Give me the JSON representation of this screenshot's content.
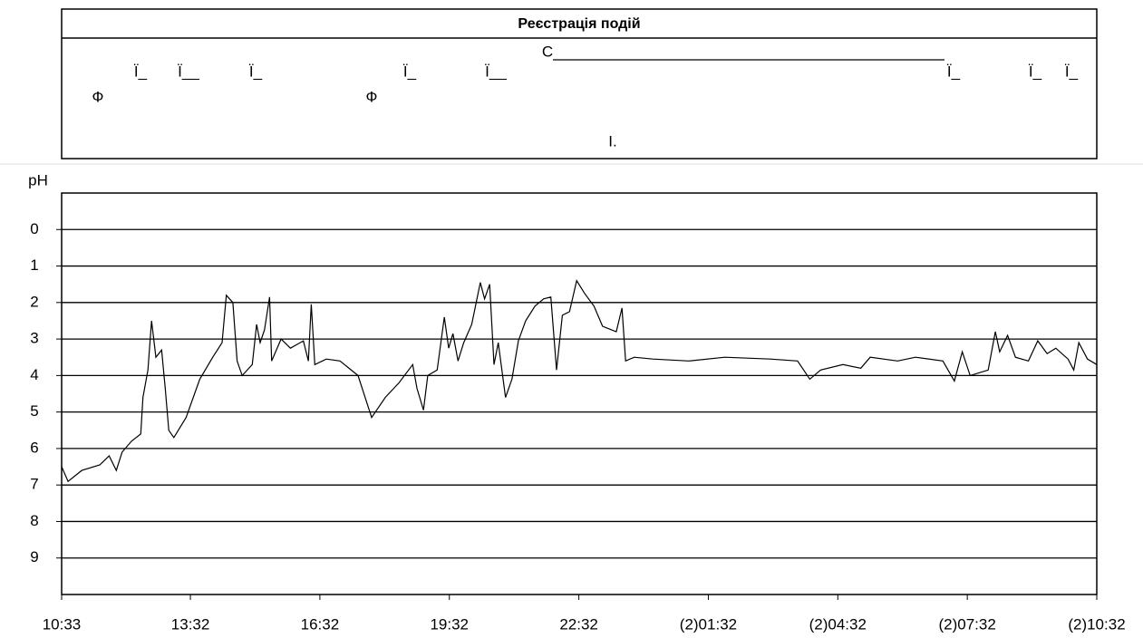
{
  "events": {
    "title": "Реєстрація подій",
    "items": [
      "Ф",
      "Ї_",
      "Ї__",
      "Ї_",
      "Ф",
      "Ї_",
      "Ї__",
      "С",
      "Ї_",
      "Ї_",
      "Ї_",
      "І."
    ]
  },
  "chart_data": {
    "type": "line",
    "y_label": "pH",
    "color": "#000000",
    "grid": true,
    "y_inverted": true,
    "x": [
      0,
      9,
      28,
      53,
      66,
      76,
      84,
      97,
      110,
      113,
      120,
      125,
      131,
      139,
      144,
      149,
      156,
      173,
      192,
      210,
      223,
      229,
      238,
      244,
      251,
      265,
      271,
      276,
      282,
      289,
      292,
      305,
      318,
      336,
      343,
      347,
      352,
      368,
      387,
      412,
      431,
      450,
      469,
      488,
      494,
      503,
      509,
      522,
      532,
      538,
      544,
      551,
      559,
      570,
      582,
      588,
      595,
      601,
      607,
      617,
      626,
      635,
      645,
      658,
      670,
      680,
      688,
      696,
      706,
      716,
      727,
      740,
      752,
      771,
      779,
      784,
      796,
      822,
      872,
      922,
      985,
      1023,
      1040,
      1055,
      1086,
      1111,
      1124,
      1162,
      1187,
      1225,
      1241,
      1252,
      1263,
      1288,
      1298,
      1304,
      1315,
      1326,
      1344,
      1357,
      1370,
      1382,
      1399,
      1407,
      1414,
      1426,
      1439
    ],
    "values": [
      6.5,
      6.9,
      6.6,
      6.45,
      6.2,
      6.6,
      6.1,
      5.8,
      5.6,
      4.6,
      3.85,
      2.5,
      3.5,
      3.3,
      4.35,
      5.5,
      5.7,
      5.15,
      4.1,
      3.5,
      3.1,
      1.8,
      2.0,
      3.6,
      4.0,
      3.7,
      2.6,
      3.1,
      2.75,
      1.85,
      3.6,
      3.0,
      3.25,
      3.05,
      3.6,
      2.05,
      3.7,
      3.55,
      3.6,
      4.0,
      5.15,
      4.6,
      4.2,
      3.7,
      4.35,
      4.95,
      4.0,
      3.85,
      2.4,
      3.25,
      2.85,
      3.6,
      3.1,
      2.6,
      1.45,
      1.9,
      1.5,
      3.7,
      3.1,
      4.6,
      4.1,
      3.05,
      2.5,
      2.1,
      1.9,
      1.85,
      3.85,
      2.35,
      2.25,
      1.4,
      1.75,
      2.1,
      2.65,
      2.8,
      2.15,
      3.6,
      3.5,
      3.55,
      3.6,
      3.5,
      3.55,
      3.6,
      4.1,
      3.85,
      3.7,
      3.8,
      3.5,
      3.6,
      3.5,
      3.6,
      4.15,
      3.35,
      4.0,
      3.85,
      2.8,
      3.35,
      2.9,
      3.5,
      3.6,
      3.05,
      3.4,
      3.25,
      3.55,
      3.85,
      3.1,
      3.55,
      3.7
    ],
    "xlim": [
      0,
      1439
    ],
    "xticks": [
      {
        "value": 0,
        "label": "10:33"
      },
      {
        "value": 179,
        "label": "13:32"
      },
      {
        "value": 359,
        "label": "16:32"
      },
      {
        "value": 539,
        "label": "19:32"
      },
      {
        "value": 719,
        "label": "22:32"
      },
      {
        "value": 899,
        "label": "(2)01:32"
      },
      {
        "value": 1079,
        "label": "(2)04:32"
      },
      {
        "value": 1259,
        "label": "(2)07:32"
      },
      {
        "value": 1439,
        "label": "(2)10:32"
      }
    ],
    "ylim": [
      -1,
      10
    ],
    "yticks": [
      0,
      1,
      2,
      3,
      4,
      5,
      6,
      7,
      8,
      9
    ]
  }
}
